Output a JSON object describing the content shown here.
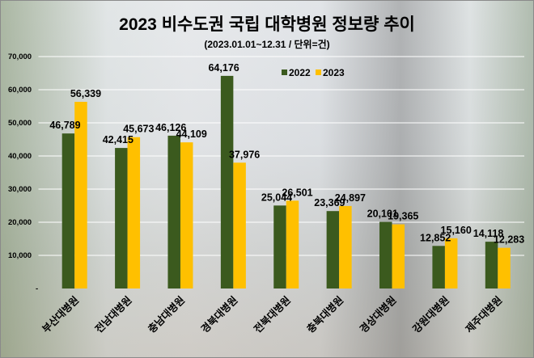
{
  "chart_data": {
    "type": "bar",
    "title": "2023 비수도권 국립 대학병원 정보량 추이",
    "subtitle": "(2023.01.01~12.31 / 단위=건)",
    "categories": [
      "부산대병원",
      "전남대병원",
      "충남대병원",
      "경북대병원",
      "전북대병원",
      "충북대병원",
      "경상대병원",
      "강원대병원",
      "제주대병원"
    ],
    "series": [
      {
        "name": "2022",
        "color": "#3b5a1e",
        "values": [
          46789,
          42415,
          46126,
          64176,
          25044,
          23369,
          20101,
          12852,
          14118
        ]
      },
      {
        "name": "2023",
        "color": "#ffc000",
        "values": [
          56339,
          45673,
          44109,
          37976,
          26501,
          24897,
          19365,
          15160,
          12283
        ]
      }
    ],
    "ylim": [
      0,
      70000
    ],
    "yticks": [
      0,
      10000,
      20000,
      30000,
      40000,
      50000,
      60000,
      70000
    ],
    "ytick_labels": [
      "-",
      "10,000",
      "20,000",
      "30,000",
      "40,000",
      "50,000",
      "60,000",
      "70,000"
    ],
    "grid": true,
    "legend": "top-center",
    "xlabel": "",
    "ylabel": ""
  }
}
